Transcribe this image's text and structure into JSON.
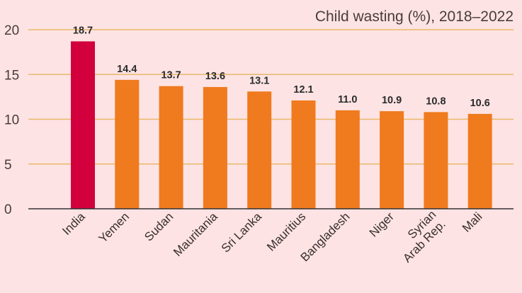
{
  "chart_data": {
    "type": "bar",
    "title": "Child wasting (%), 2018–2022",
    "xlabel": "",
    "ylabel": "",
    "ylim": [
      0,
      20
    ],
    "yticks": [
      0,
      5,
      10,
      15,
      20
    ],
    "grid": true,
    "categories": [
      [
        "India"
      ],
      [
        "Yemen"
      ],
      [
        "Sudan"
      ],
      [
        "Mauritania"
      ],
      [
        "Sri Lanka"
      ],
      [
        "Mauritius"
      ],
      [
        "Bangladesh"
      ],
      [
        "Niger"
      ],
      [
        "Syrian",
        "Arab Rep."
      ],
      [
        "Mali"
      ]
    ],
    "values": [
      18.7,
      14.4,
      13.7,
      13.6,
      13.1,
      12.1,
      11.0,
      10.9,
      10.8,
      10.6
    ],
    "value_labels": [
      "18.7",
      "14.4",
      "13.7",
      "13.6",
      "13.1",
      "12.1",
      "11.0",
      "10.9",
      "10.8",
      "10.6"
    ],
    "highlight_index": 0,
    "colors": {
      "highlight": "#d2003c",
      "bar": "#f07a1e",
      "grid": "#e8b96a",
      "axis": "#333333",
      "background": "#fde3e4"
    }
  }
}
